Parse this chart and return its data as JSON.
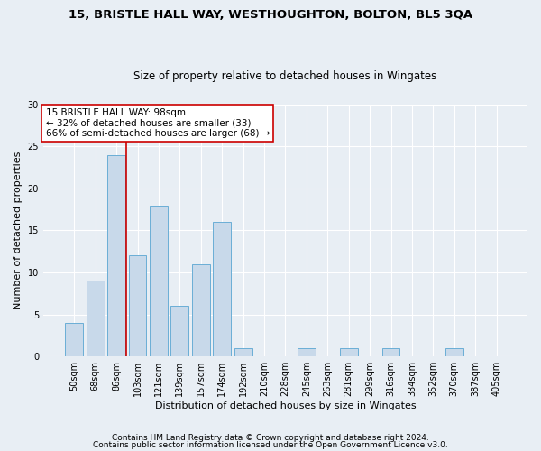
{
  "title1": "15, BRISTLE HALL WAY, WESTHOUGHTON, BOLTON, BL5 3QA",
  "title2": "Size of property relative to detached houses in Wingates",
  "xlabel": "Distribution of detached houses by size in Wingates",
  "ylabel": "Number of detached properties",
  "bar_labels": [
    "50sqm",
    "68sqm",
    "86sqm",
    "103sqm",
    "121sqm",
    "139sqm",
    "157sqm",
    "174sqm",
    "192sqm",
    "210sqm",
    "228sqm",
    "245sqm",
    "263sqm",
    "281sqm",
    "299sqm",
    "316sqm",
    "334sqm",
    "352sqm",
    "370sqm",
    "387sqm",
    "405sqm"
  ],
  "bar_values": [
    4,
    9,
    24,
    12,
    18,
    6,
    11,
    16,
    1,
    0,
    0,
    1,
    0,
    1,
    0,
    1,
    0,
    0,
    1,
    0,
    0
  ],
  "bar_color": "#c8d9ea",
  "bar_edge_color": "#6aaed6",
  "vline_color": "#cc0000",
  "vline_pos": 2.45,
  "annotation_lines": [
    "15 BRISTLE HALL WAY: 98sqm",
    "← 32% of detached houses are smaller (33)",
    "66% of semi-detached houses are larger (68) →"
  ],
  "annotation_box_color": "#cc0000",
  "ylim": [
    0,
    30
  ],
  "yticks": [
    0,
    5,
    10,
    15,
    20,
    25,
    30
  ],
  "footer1": "Contains HM Land Registry data © Crown copyright and database right 2024.",
  "footer2": "Contains public sector information licensed under the Open Government Licence v3.0.",
  "bg_color": "#e8eef4",
  "grid_color": "#ffffff",
  "title1_fontsize": 9.5,
  "title2_fontsize": 8.5,
  "xlabel_fontsize": 8,
  "ylabel_fontsize": 8,
  "tick_fontsize": 7,
  "annotation_fontsize": 7.5,
  "footer_fontsize": 6.5
}
